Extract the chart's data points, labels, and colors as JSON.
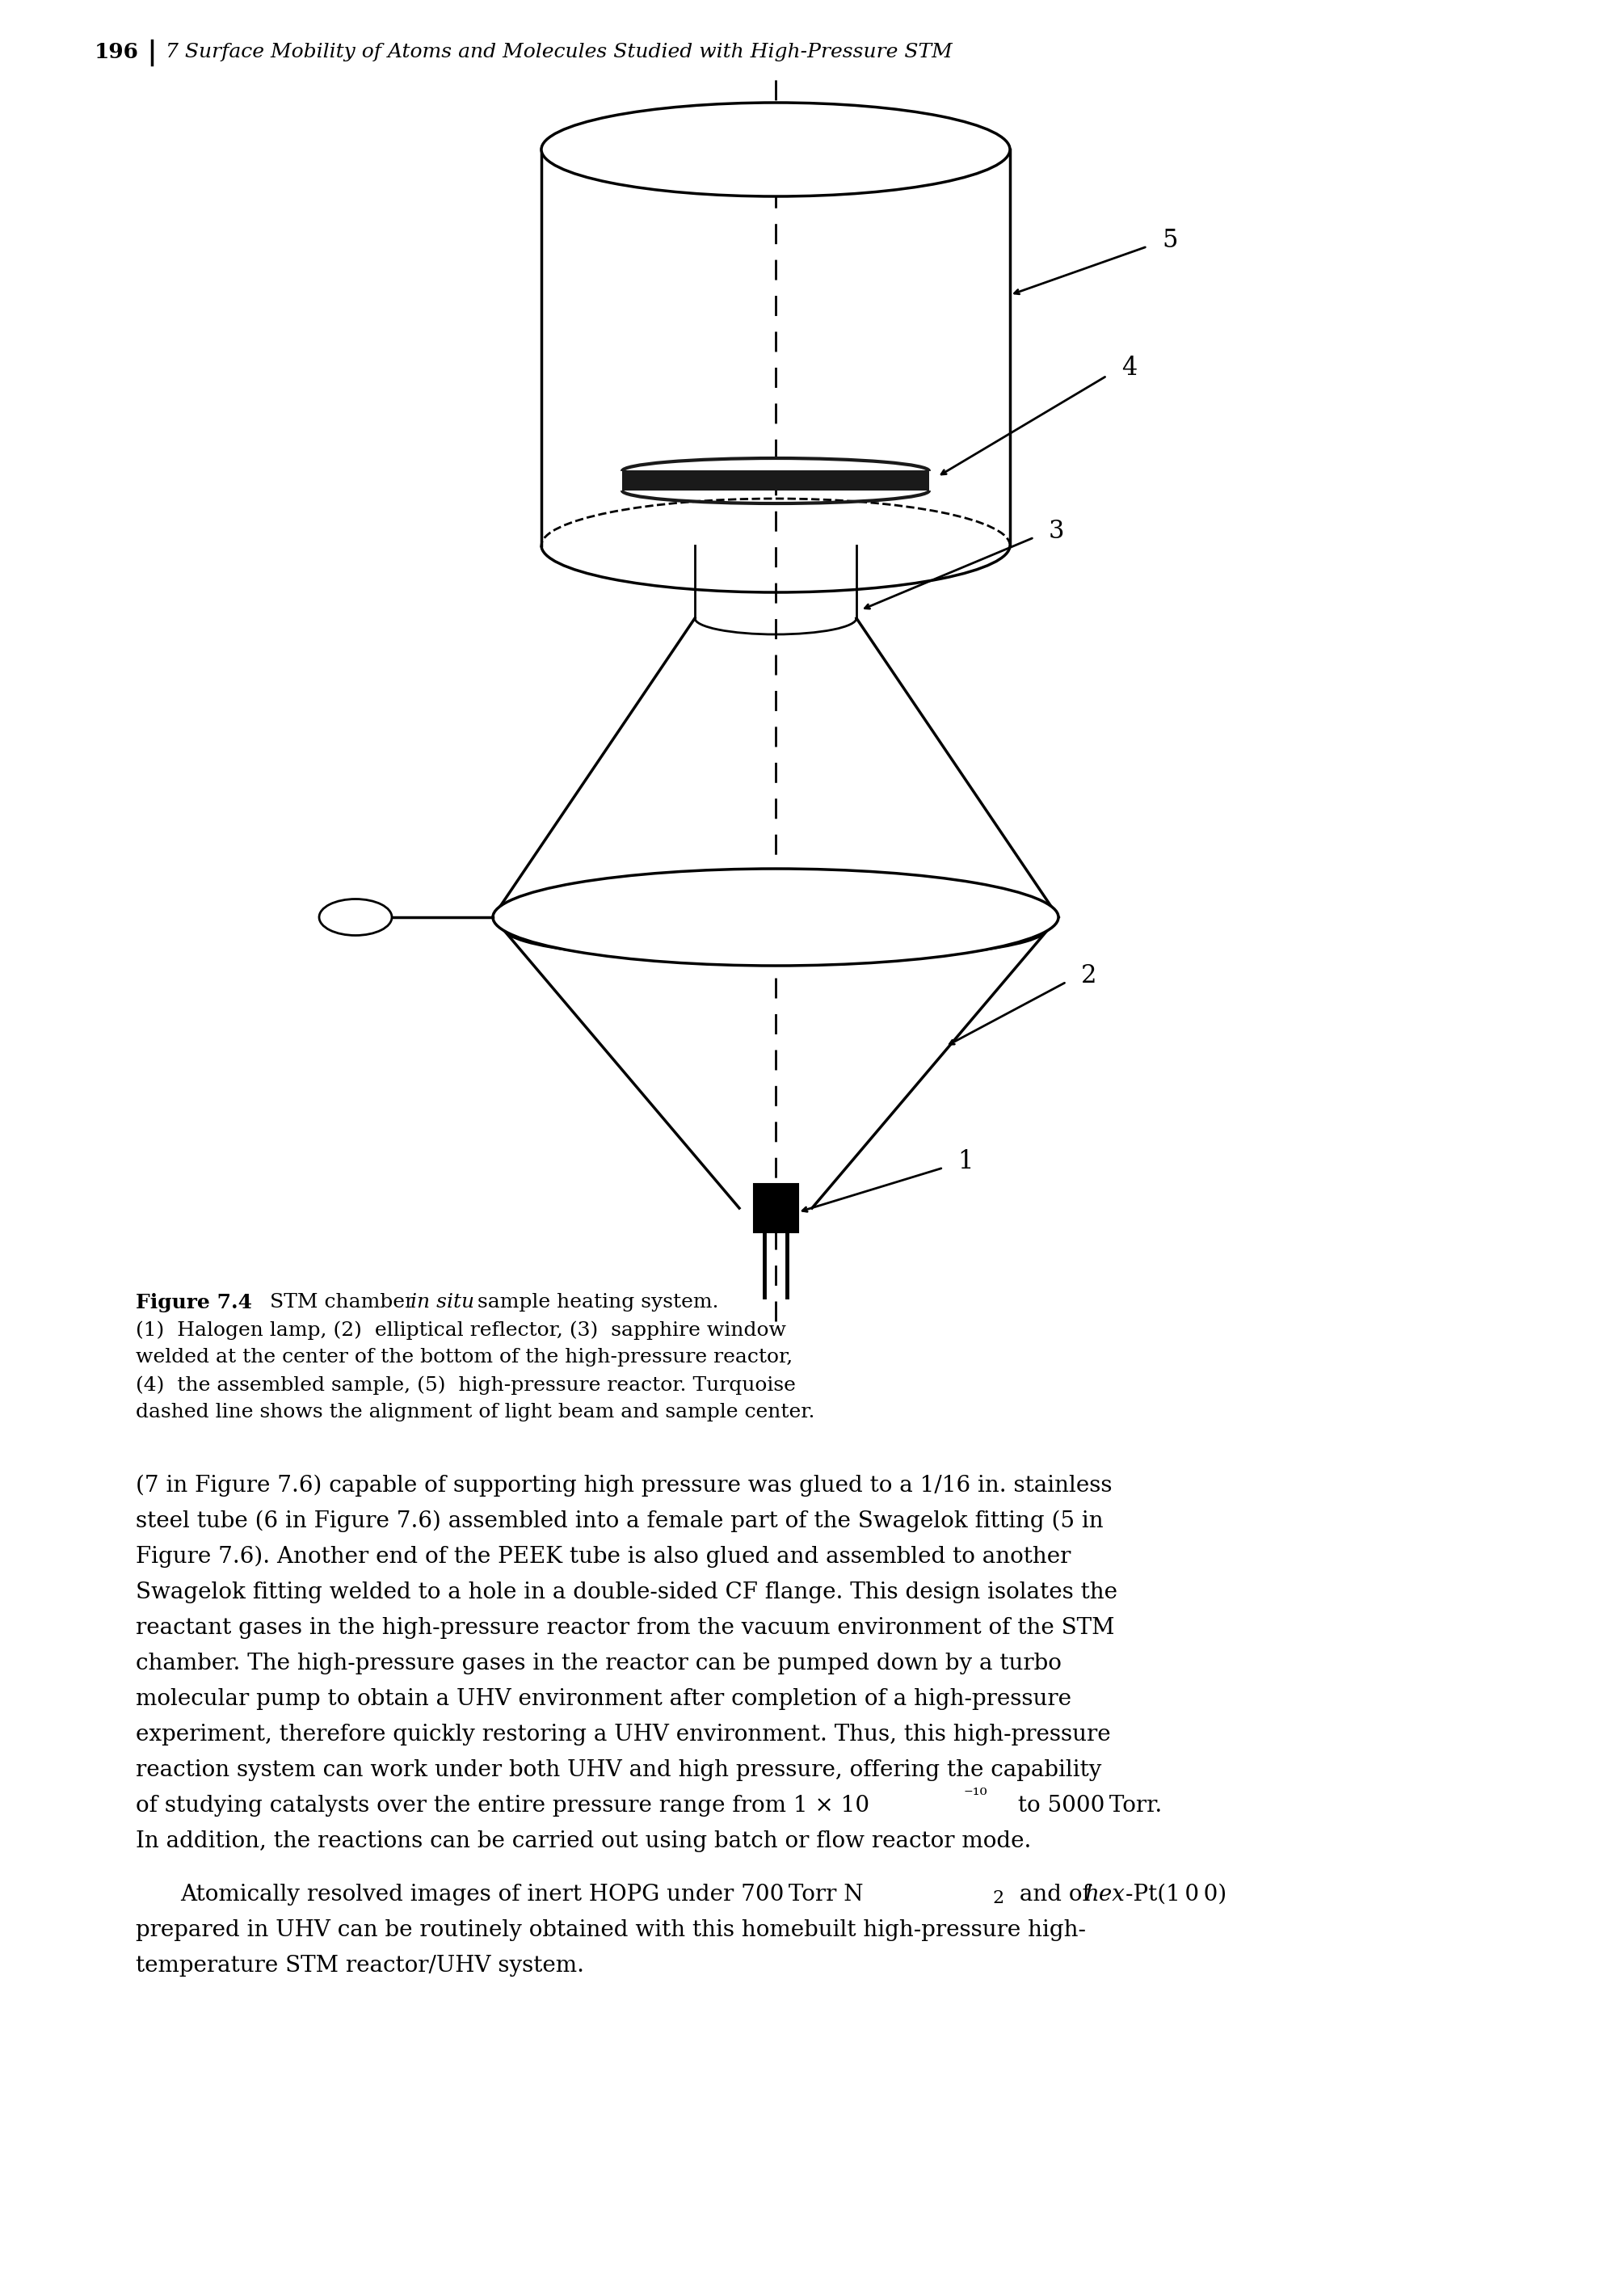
{
  "header_number": "196",
  "header_text": "7 Surface Mobility of Atoms and Molecules Studied with High-Pressure STM",
  "figure_caption_line1a": "Figure 7.4",
  "figure_caption_line1b": " STM chamber ",
  "figure_caption_line1c": "in situ",
  "figure_caption_line1d": " sample heating system.",
  "figure_caption_line2": "(1)  Halogen lamp, (2)  elliptical reflector, (3)  sapphire window",
  "figure_caption_line3": "welded at the center of the bottom of the high-pressure reactor,",
  "figure_caption_line4": "(4)  the assembled sample, (5)  high-pressure reactor. Turquoise",
  "figure_caption_line5": "dashed line shows the alignment of light beam and sample center.",
  "para1_lines": [
    "(7 in Figure 7.6) capable of supporting high pressure was glued to a 1/16 in. stainless",
    "steel tube (6 in Figure 7.6) assembled into a female part of the Swagelok fitting (5 in",
    "Figure 7.6). Another end of the PEEK tube is also glued and assembled to another",
    "Swagelok fitting welded to a hole in a double-sided CF flange. This design isolates the",
    "reactant gases in the high-pressure reactor from the vacuum environment of the STM",
    "chamber. The high-pressure gases in the reactor can be pumped down by a turbo",
    "molecular pump to obtain a UHV environment after completion of a high-pressure",
    "experiment, therefore quickly restoring a UHV environment. Thus, this high-pressure",
    "reaction system can work under both UHV and high pressure, offering the capability",
    "of studying catalysts over the entire pressure range from 1 × 10⁻¹⁰ to 5000 Torr.",
    "In addition, the reactions can be carried out using batch or flow reactor mode."
  ],
  "para2_line1a": "Atomically resolved images of inert HOPG under 700 Torr N",
  "para2_line1b": "2",
  "para2_line1c": " and of ",
  "para2_line1d": "hex",
  "para2_line1e": "-Pt(1 0 0)",
  "para2_line2": "prepared in UHV can be routinely obtained with this homebuilt high-pressure high-",
  "para2_line3": "temperature STM reactor/UHV system.",
  "bg_color": "#ffffff",
  "text_color": "#000000"
}
